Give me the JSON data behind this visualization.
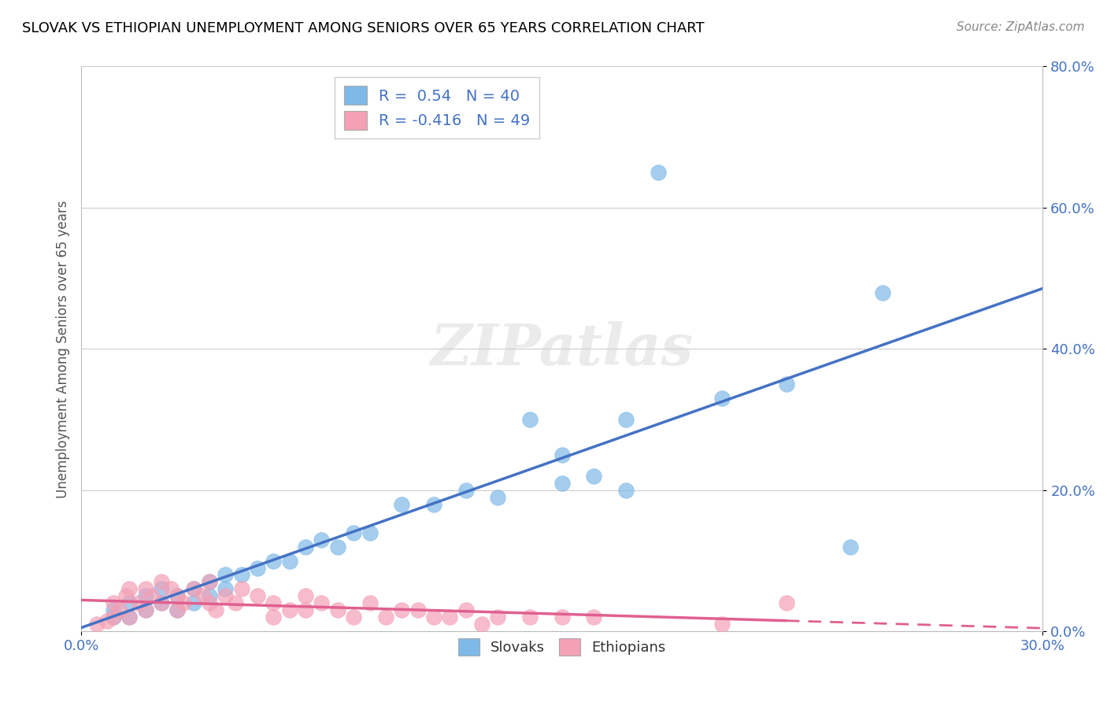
{
  "title": "SLOVAK VS ETHIOPIAN UNEMPLOYMENT AMONG SENIORS OVER 65 YEARS CORRELATION CHART",
  "source": "Source: ZipAtlas.com",
  "xlabel_label": "Slovaks",
  "xlabel_label2": "Ethiopians",
  "ylabel": "Unemployment Among Seniors over 65 years",
  "watermark": "ZIPatlas",
  "slovak_R": 0.54,
  "slovak_N": 40,
  "ethiopian_R": -0.416,
  "ethiopian_N": 49,
  "xmin": 0.0,
  "xmax": 0.3,
  "ymin": 0.0,
  "ymax": 0.8,
  "yticks": [
    0.0,
    0.2,
    0.4,
    0.6,
    0.8
  ],
  "xticks": [
    0.0,
    0.3
  ],
  "slovak_color": "#7EB9E8",
  "ethiopian_color": "#F4A0B5",
  "slovak_line_color": "#4472C4",
  "ethiopian_line_color": "#E06090",
  "slovak_scatter": [
    [
      0.01,
      0.02
    ],
    [
      0.01,
      0.03
    ],
    [
      0.015,
      0.04
    ],
    [
      0.015,
      0.02
    ],
    [
      0.02,
      0.05
    ],
    [
      0.02,
      0.03
    ],
    [
      0.025,
      0.04
    ],
    [
      0.025,
      0.06
    ],
    [
      0.03,
      0.03
    ],
    [
      0.03,
      0.05
    ],
    [
      0.035,
      0.06
    ],
    [
      0.035,
      0.04
    ],
    [
      0.04,
      0.07
    ],
    [
      0.04,
      0.05
    ],
    [
      0.045,
      0.08
    ],
    [
      0.045,
      0.06
    ],
    [
      0.05,
      0.08
    ],
    [
      0.055,
      0.09
    ],
    [
      0.06,
      0.1
    ],
    [
      0.065,
      0.1
    ],
    [
      0.07,
      0.12
    ],
    [
      0.075,
      0.13
    ],
    [
      0.08,
      0.12
    ],
    [
      0.085,
      0.14
    ],
    [
      0.09,
      0.14
    ],
    [
      0.1,
      0.18
    ],
    [
      0.11,
      0.18
    ],
    [
      0.12,
      0.2
    ],
    [
      0.13,
      0.19
    ],
    [
      0.15,
      0.21
    ],
    [
      0.16,
      0.22
    ],
    [
      0.17,
      0.2
    ],
    [
      0.2,
      0.33
    ],
    [
      0.22,
      0.35
    ],
    [
      0.24,
      0.12
    ],
    [
      0.25,
      0.48
    ],
    [
      0.14,
      0.3
    ],
    [
      0.18,
      0.65
    ],
    [
      0.17,
      0.3
    ],
    [
      0.15,
      0.25
    ]
  ],
  "ethiopian_scatter": [
    [
      0.005,
      0.01
    ],
    [
      0.008,
      0.015
    ],
    [
      0.01,
      0.02
    ],
    [
      0.01,
      0.04
    ],
    [
      0.012,
      0.03
    ],
    [
      0.014,
      0.05
    ],
    [
      0.015,
      0.06
    ],
    [
      0.015,
      0.02
    ],
    [
      0.018,
      0.04
    ],
    [
      0.02,
      0.03
    ],
    [
      0.02,
      0.06
    ],
    [
      0.022,
      0.05
    ],
    [
      0.025,
      0.04
    ],
    [
      0.025,
      0.07
    ],
    [
      0.028,
      0.06
    ],
    [
      0.03,
      0.05
    ],
    [
      0.03,
      0.03
    ],
    [
      0.032,
      0.04
    ],
    [
      0.035,
      0.06
    ],
    [
      0.038,
      0.05
    ],
    [
      0.04,
      0.04
    ],
    [
      0.04,
      0.07
    ],
    [
      0.042,
      0.03
    ],
    [
      0.045,
      0.05
    ],
    [
      0.048,
      0.04
    ],
    [
      0.05,
      0.06
    ],
    [
      0.055,
      0.05
    ],
    [
      0.06,
      0.04
    ],
    [
      0.065,
      0.03
    ],
    [
      0.07,
      0.05
    ],
    [
      0.075,
      0.04
    ],
    [
      0.08,
      0.03
    ],
    [
      0.09,
      0.04
    ],
    [
      0.1,
      0.03
    ],
    [
      0.11,
      0.02
    ],
    [
      0.12,
      0.03
    ],
    [
      0.13,
      0.02
    ],
    [
      0.15,
      0.02
    ],
    [
      0.2,
      0.01
    ],
    [
      0.22,
      0.04
    ],
    [
      0.06,
      0.02
    ],
    [
      0.07,
      0.03
    ],
    [
      0.085,
      0.02
    ],
    [
      0.095,
      0.02
    ],
    [
      0.105,
      0.03
    ],
    [
      0.115,
      0.02
    ],
    [
      0.125,
      0.01
    ],
    [
      0.14,
      0.02
    ],
    [
      0.16,
      0.02
    ]
  ],
  "background_color": "#FFFFFF",
  "grid_color": "#CCCCCC"
}
